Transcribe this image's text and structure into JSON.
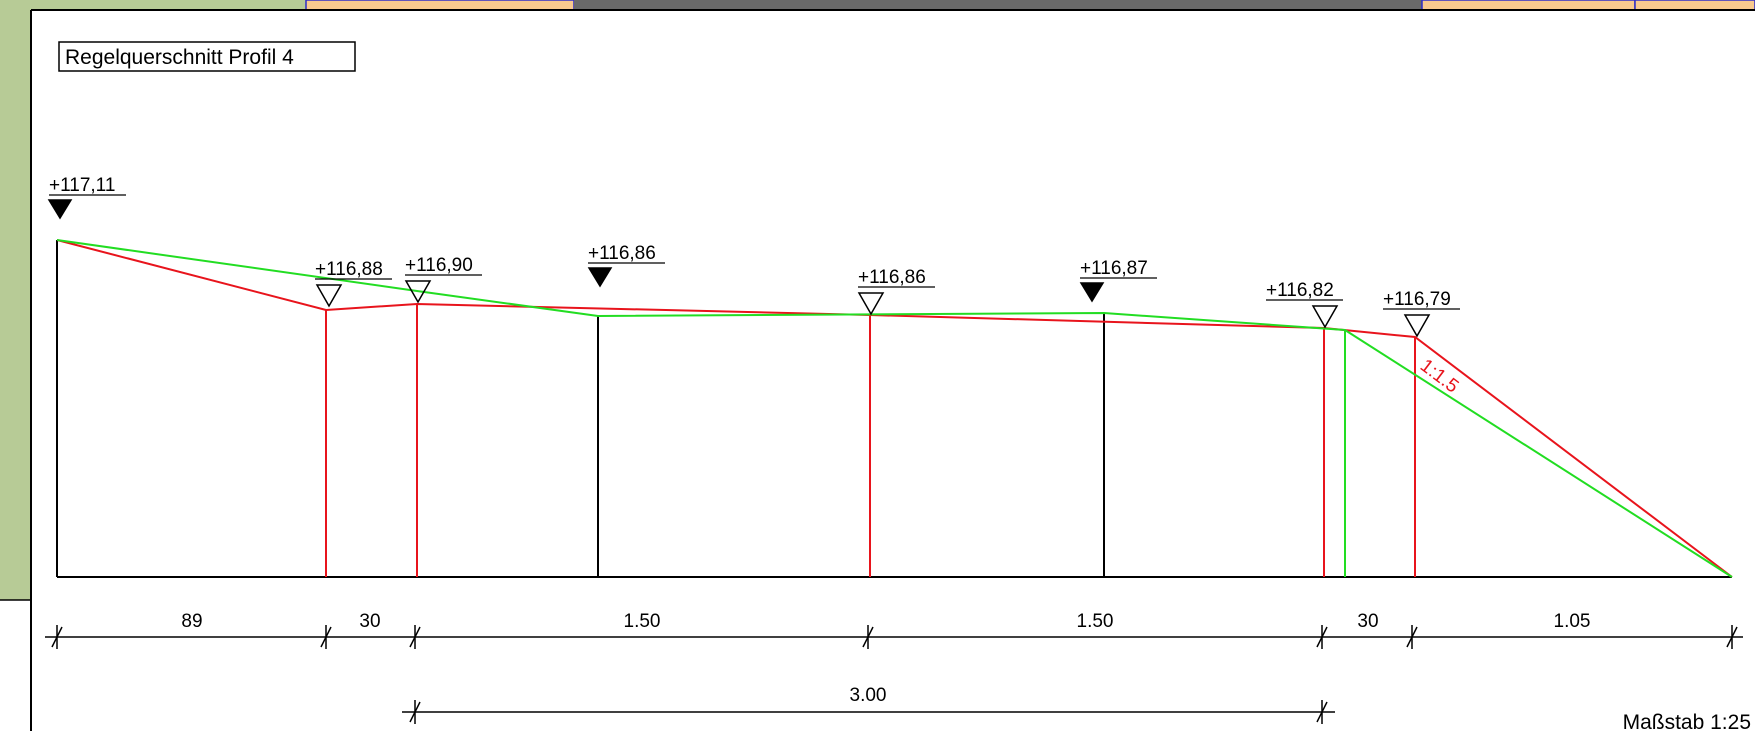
{
  "title": "Regelquerschnitt Profil 4",
  "scale": "Maßstab 1:25",
  "slope_label": "1:1.5",
  "elevations": [
    {
      "label": "+117,11",
      "marker": "filled"
    },
    {
      "label": "+116,88",
      "marker": "open"
    },
    {
      "label": "+116,90",
      "marker": "open"
    },
    {
      "label": "+116,86",
      "marker": "filled"
    },
    {
      "label": "+116,86",
      "marker": "open"
    },
    {
      "label": "+116,87",
      "marker": "filled"
    },
    {
      "label": "+116,82",
      "marker": "open"
    },
    {
      "label": "+116,79",
      "marker": "open"
    }
  ],
  "dimensions_top": [
    "89",
    "30",
    "1.50",
    "1.50",
    "30",
    "1.05"
  ],
  "dimension_total": "3.00",
  "colors": {
    "line": "#000000",
    "red": "#e8141c",
    "green": "#22dd22",
    "side_panel": "#b7cb96",
    "top_orange": "#f8c98e",
    "top_dark": "#696969",
    "top_blue": "#2d2dc8"
  }
}
